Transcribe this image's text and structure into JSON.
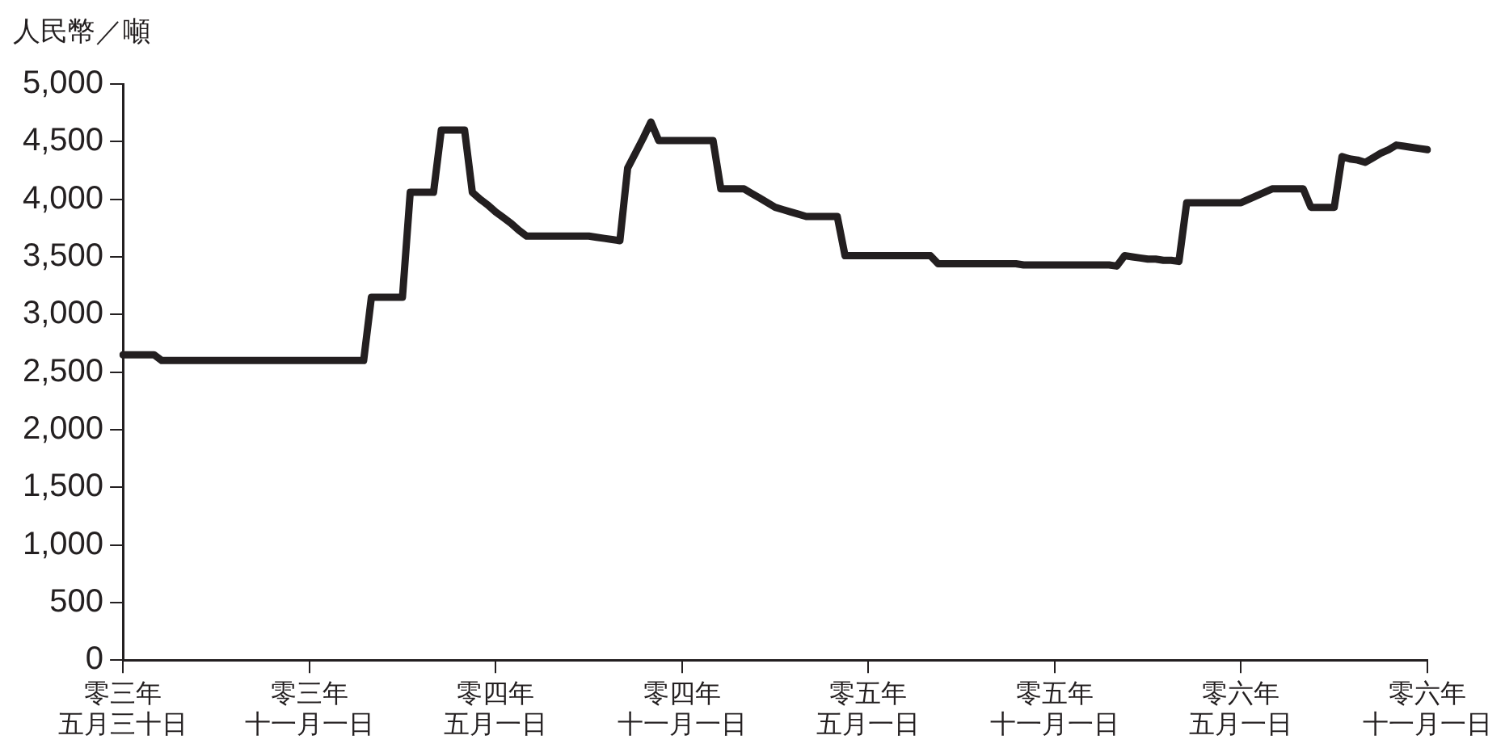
{
  "chart_data": {
    "type": "line",
    "ylabel": "人民幣／噸",
    "categories": [
      "零三年五月三十日",
      null,
      null,
      null,
      null,
      null,
      null,
      null,
      null,
      null,
      null,
      null,
      null,
      null,
      null,
      null,
      null,
      null,
      null,
      null,
      null,
      null,
      null,
      null,
      "零三年十一月一日",
      null,
      null,
      null,
      null,
      null,
      null,
      null,
      null,
      null,
      null,
      null,
      null,
      null,
      null,
      null,
      null,
      null,
      null,
      null,
      null,
      null,
      null,
      null,
      "零四年五月一日",
      null,
      null,
      null,
      null,
      null,
      null,
      null,
      null,
      null,
      null,
      null,
      null,
      null,
      null,
      null,
      null,
      null,
      null,
      null,
      null,
      null,
      null,
      null,
      "零四年十一月一日",
      null,
      null,
      null,
      null,
      null,
      null,
      null,
      null,
      null,
      null,
      null,
      null,
      null,
      null,
      null,
      null,
      null,
      null,
      null,
      null,
      null,
      null,
      null,
      "零五年五月一日",
      null,
      null,
      null,
      null,
      null,
      null,
      null,
      null,
      null,
      null,
      null,
      null,
      null,
      null,
      null,
      null,
      null,
      null,
      null,
      null,
      null,
      null,
      null,
      "零五年十一月一日",
      null,
      null,
      null,
      null,
      null,
      null,
      null,
      null,
      null,
      null,
      null,
      null,
      null,
      null,
      null,
      null,
      null,
      null,
      null,
      null,
      null,
      null,
      null,
      "零六年五月一日",
      null,
      null,
      null,
      null,
      null,
      null,
      null,
      null,
      null,
      null,
      null,
      null,
      null,
      null,
      null,
      null,
      null,
      null,
      null,
      null,
      null,
      null,
      null,
      "零六年十一月一日"
    ],
    "series": [
      {
        "color": "#231f20",
        "values": [
          2650,
          2650,
          2650,
          2650,
          2650,
          2600,
          2600,
          2600,
          2600,
          2600,
          2600,
          2600,
          2600,
          2600,
          2600,
          2600,
          2600,
          2600,
          2600,
          2600,
          2600,
          2600,
          2600,
          2600,
          2600,
          2600,
          2600,
          2600,
          2600,
          2600,
          2600,
          2600,
          3150,
          3150,
          3150,
          3150,
          3150,
          4060,
          4060,
          4060,
          4060,
          4600,
          4600,
          4600,
          4600,
          4060,
          4000,
          3950,
          3890,
          3840,
          3790,
          3730,
          3680,
          3680,
          3680,
          3680,
          3680,
          3680,
          3680,
          3680,
          3680,
          3670,
          3660,
          3650,
          3640,
          4270,
          4400,
          4530,
          4670,
          4510,
          4510,
          4510,
          4510,
          4510,
          4510,
          4510,
          4510,
          4090,
          4090,
          4090,
          4090,
          4050,
          4010,
          3970,
          3930,
          3910,
          3890,
          3870,
          3850,
          3850,
          3850,
          3850,
          3850,
          3510,
          3510,
          3510,
          3510,
          3510,
          3510,
          3510,
          3510,
          3510,
          3510,
          3510,
          3510,
          3440,
          3440,
          3440,
          3440,
          3440,
          3440,
          3440,
          3440,
          3440,
          3440,
          3440,
          3430,
          3430,
          3430,
          3430,
          3430,
          3430,
          3430,
          3430,
          3430,
          3430,
          3430,
          3430,
          3420,
          3510,
          3500,
          3490,
          3480,
          3480,
          3470,
          3470,
          3460,
          3970,
          3970,
          3970,
          3970,
          3970,
          3970,
          3970,
          3970,
          4000,
          4030,
          4060,
          4090,
          4090,
          4090,
          4090,
          4090,
          3930,
          3930,
          3930,
          3930,
          4370,
          4350,
          4340,
          4320,
          4360,
          4400,
          4430,
          4470,
          4460,
          4450,
          4440,
          4430
        ]
      }
    ],
    "ylim": [
      0,
      5000
    ],
    "yticks": [
      0,
      500,
      {
        "value": 1000,
        "label": "1,000"
      },
      {
        "value": 1500,
        "label": "1,500"
      },
      {
        "value": 2000,
        "label": "2,000"
      },
      {
        "value": 2500,
        "label": "2,500"
      },
      {
        "value": 3000,
        "label": "3,000"
      },
      {
        "value": 3500,
        "label": "3,500"
      },
      {
        "value": 4000,
        "label": "4,000"
      },
      {
        "value": 4500,
        "label": "4,500"
      },
      {
        "value": 5000,
        "label": "5,000"
      }
    ],
    "grid": false,
    "legend": false,
    "marker": "none",
    "line_style": "solid"
  }
}
